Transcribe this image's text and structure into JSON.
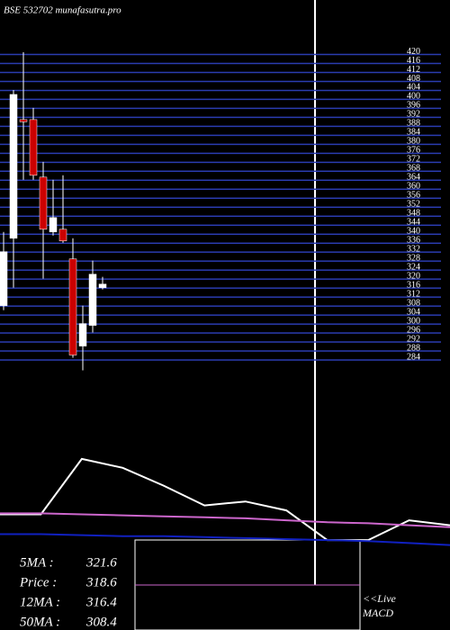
{
  "chart_data": [
    {
      "type": "candlestick",
      "title": "BSE 532702 munafasutra.pro",
      "categories": [
        null,
        null,
        null,
        null,
        null,
        null,
        null,
        null,
        null,
        null,
        null
      ],
      "open": [
        308.2,
        338.2,
        391,
        391,
        365.4,
        341,
        342.2,
        329,
        290.2,
        299.4,
        316.2
      ],
      "high": [
        341,
        404.2,
        421,
        396.2,
        372.2,
        364.2,
        366.2,
        338.2,
        308.2,
        328.2,
        321
      ],
      "low": [
        306.2,
        316.2,
        364.2,
        364.2,
        320.2,
        339.4,
        336.2,
        285,
        279.4,
        296.2,
        315.4
      ],
      "close": [
        332.2,
        402.2,
        390,
        366.2,
        342.2,
        347.4,
        337,
        286.2,
        300.2,
        322.2,
        317.8
      ],
      "up_color": "#ffffff",
      "down_color": "#cc0000",
      "ylim": [
        280,
        421
      ],
      "yticks": [
        284,
        288,
        292,
        296,
        300,
        304,
        308,
        312,
        316,
        320,
        324,
        328,
        332,
        336,
        340,
        344,
        348,
        352,
        356,
        360,
        364,
        368,
        372,
        376,
        380,
        384,
        388,
        392,
        396,
        400,
        404,
        408,
        412,
        416,
        420
      ],
      "grid": true,
      "grid_color": "#2a3cb0"
    },
    {
      "type": "line",
      "title": "MACD",
      "x": [
        0,
        1,
        2,
        3,
        4,
        5,
        6,
        7,
        8,
        9,
        10,
        11
      ],
      "xlim": [
        0,
        11
      ],
      "ylim": [
        0,
        100
      ],
      "series": [
        {
          "color": "#ffffff",
          "values": [
            35,
            35,
            91,
            82,
            64,
            44,
            48,
            39,
            9,
            9,
            29,
            24
          ]
        },
        {
          "color": "#cc66cc",
          "values": [
            36,
            36,
            35,
            34,
            33,
            32,
            31,
            29,
            27,
            26,
            24,
            22
          ]
        },
        {
          "color": "#1020c0",
          "values": [
            15,
            15,
            14,
            13,
            13,
            12,
            11,
            10,
            9,
            8,
            6,
            4
          ]
        }
      ]
    }
  ],
  "info": [
    {
      "label": "5MA :",
      "value": 321.6
    },
    {
      "label": "Price :",
      "value": 318.6
    },
    {
      "label": "12MA :",
      "value": 316.4
    },
    {
      "label": "50MA :",
      "value": 308.4
    }
  ],
  "live": "<<Live"
}
